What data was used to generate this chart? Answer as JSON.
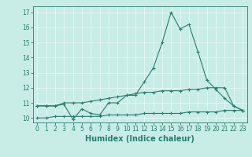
{
  "title": "",
  "xlabel": "Humidex (Indice chaleur)",
  "x": [
    0,
    1,
    2,
    3,
    4,
    5,
    6,
    7,
    8,
    9,
    10,
    11,
    12,
    13,
    14,
    15,
    16,
    17,
    18,
    19,
    20,
    21,
    22,
    23
  ],
  "line1": [
    10.8,
    10.8,
    10.8,
    10.9,
    9.9,
    10.6,
    10.3,
    10.2,
    11.0,
    11.0,
    11.5,
    11.5,
    12.4,
    13.3,
    15.0,
    17.0,
    15.9,
    16.2,
    14.4,
    12.5,
    11.9,
    11.3,
    10.8,
    10.5
  ],
  "line2": [
    10.8,
    10.8,
    10.8,
    11.0,
    11.0,
    11.0,
    11.1,
    11.2,
    11.3,
    11.4,
    11.5,
    11.6,
    11.7,
    11.7,
    11.8,
    11.8,
    11.8,
    11.9,
    11.9,
    12.0,
    12.0,
    12.0,
    10.8,
    10.5
  ],
  "line3": [
    10.0,
    10.0,
    10.1,
    10.1,
    10.1,
    10.1,
    10.1,
    10.1,
    10.2,
    10.2,
    10.2,
    10.2,
    10.3,
    10.3,
    10.3,
    10.3,
    10.3,
    10.4,
    10.4,
    10.4,
    10.4,
    10.5,
    10.5,
    10.5
  ],
  "line_color": "#2a7d6e",
  "bg_color": "#c8ece6",
  "grid_color": "#e8f8f5",
  "ylim": [
    9.7,
    17.4
  ],
  "xlim": [
    -0.5,
    23.5
  ],
  "yticks": [
    10,
    11,
    12,
    13,
    14,
    15,
    16,
    17
  ],
  "xticks": [
    0,
    1,
    2,
    3,
    4,
    5,
    6,
    7,
    8,
    9,
    10,
    11,
    12,
    13,
    14,
    15,
    16,
    17,
    18,
    19,
    20,
    21,
    22,
    23
  ],
  "tick_label_size": 5.5,
  "xlabel_size": 7.0,
  "xlabel_color": "#2a7d6e"
}
